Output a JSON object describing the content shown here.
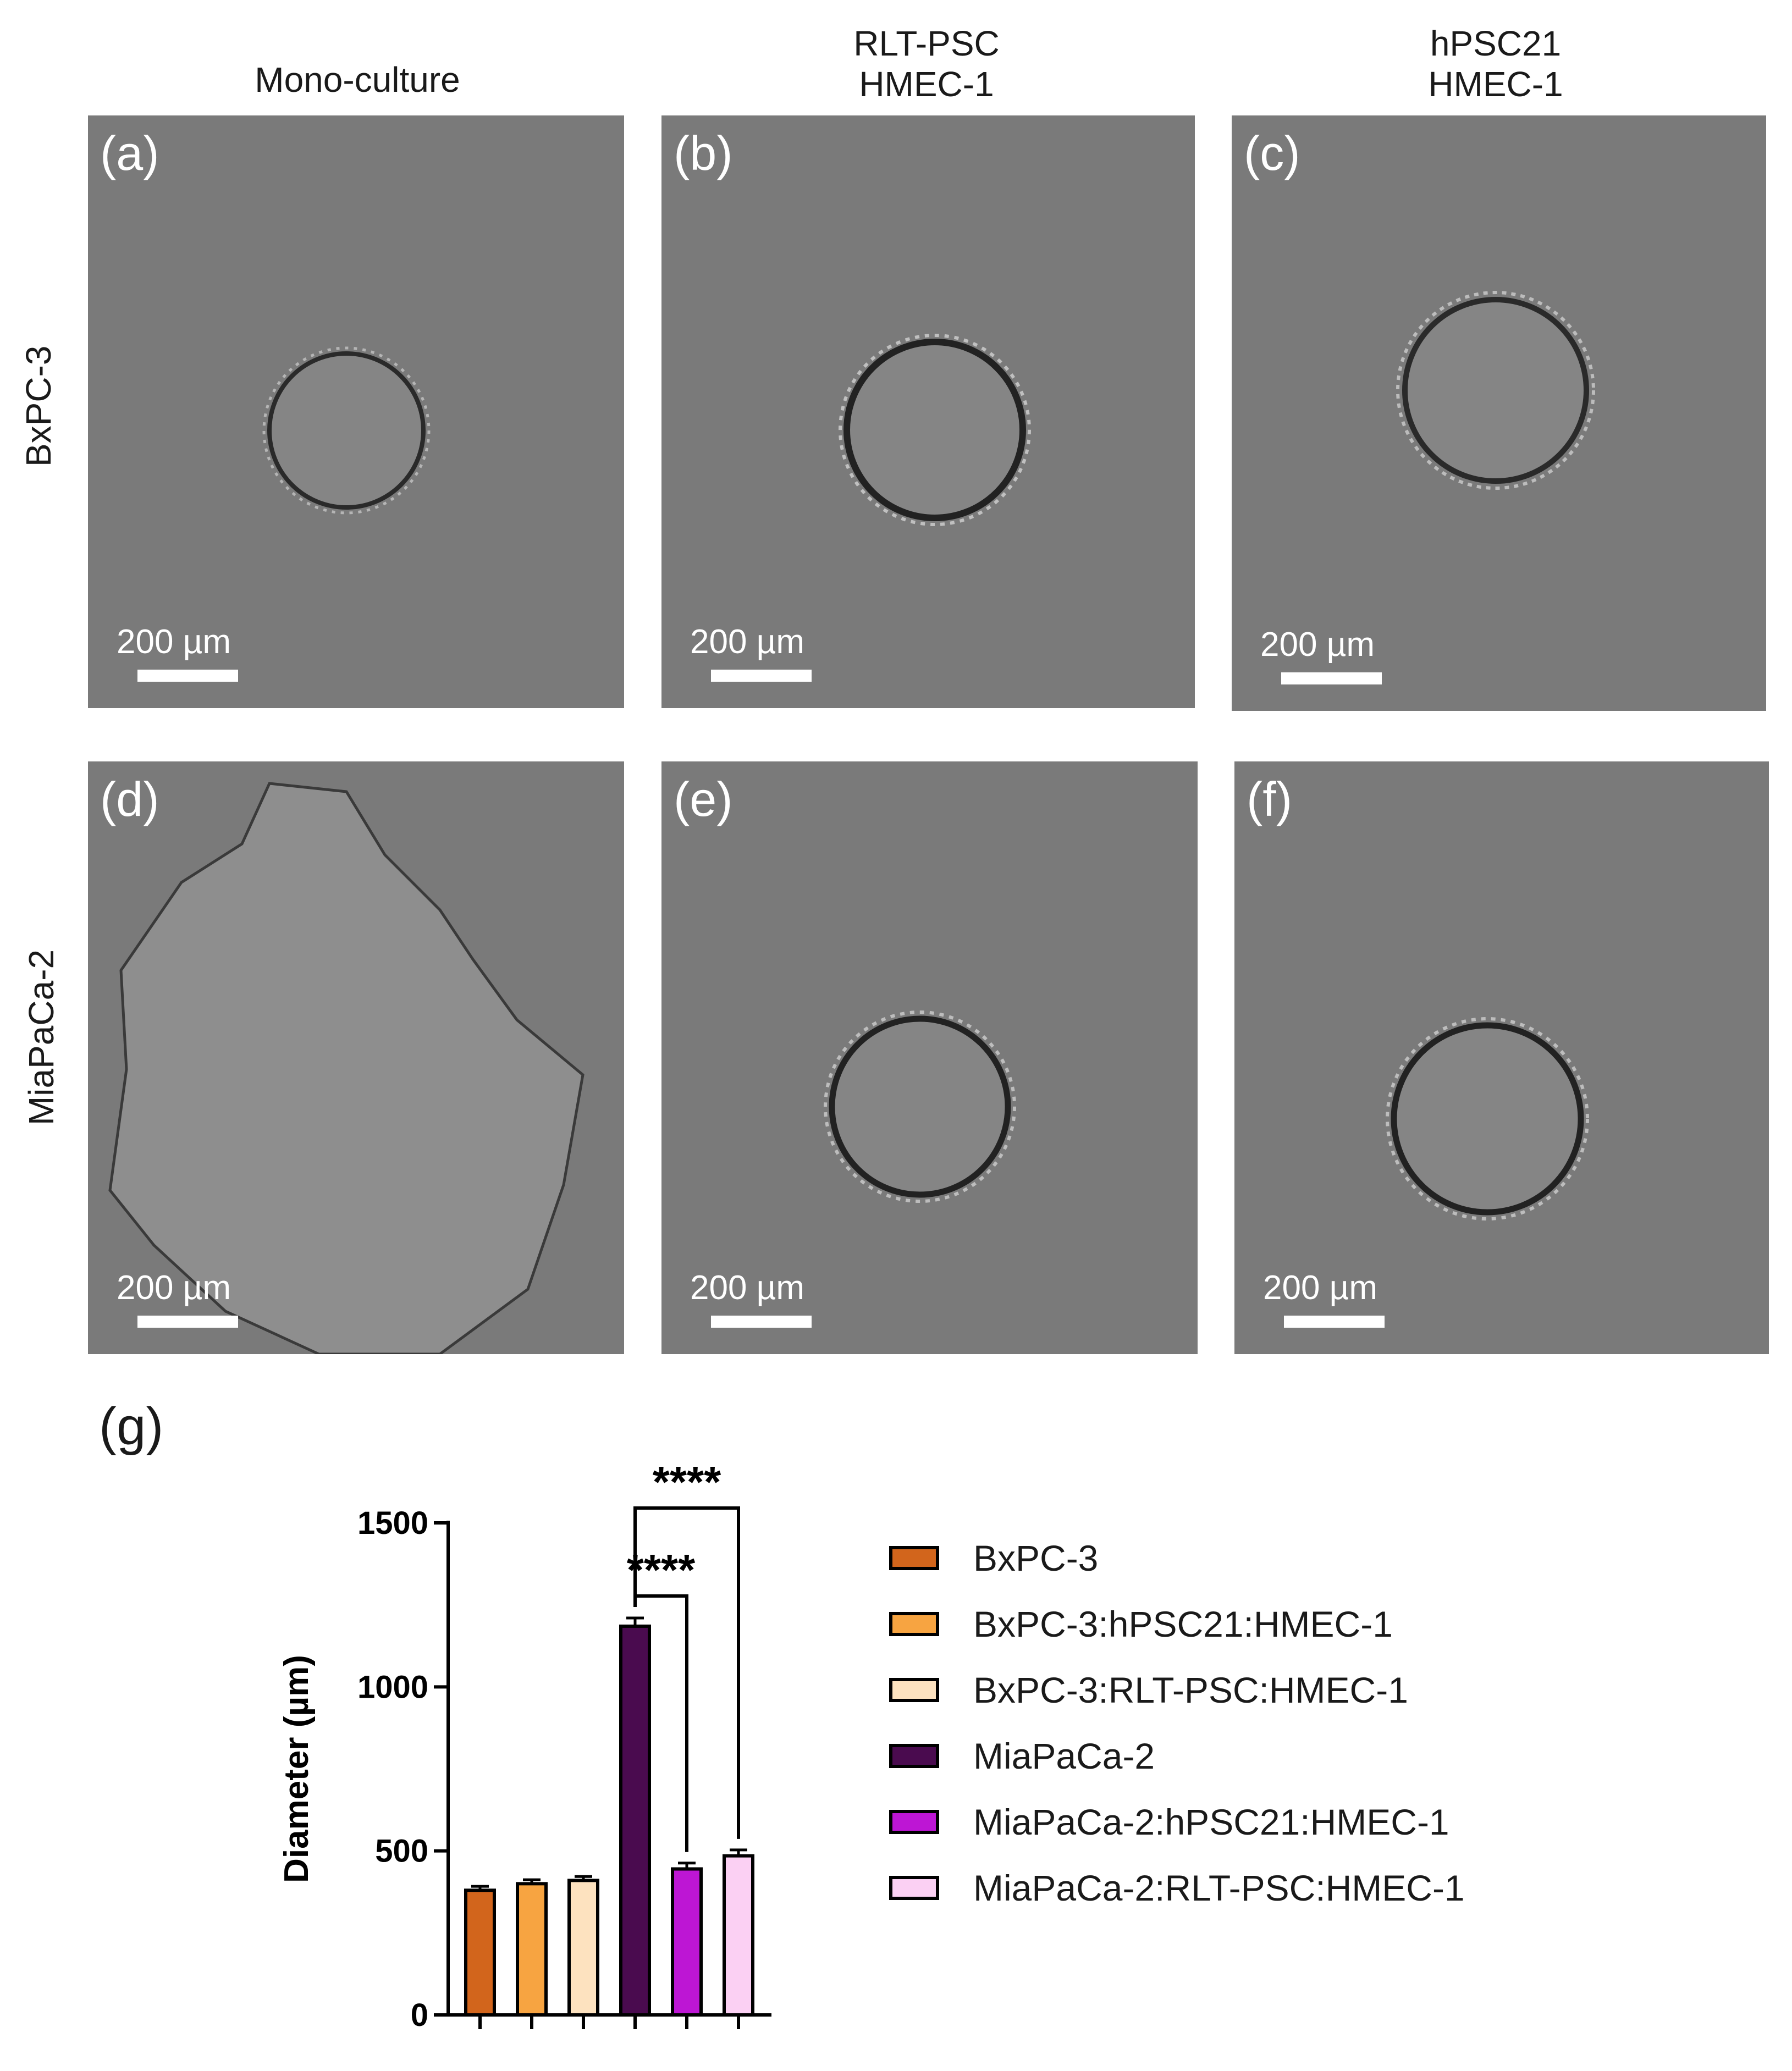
{
  "figure": {
    "column_headers": [
      {
        "lines": [
          "Mono-culture"
        ]
      },
      {
        "lines": [
          "RLT-PSC",
          "HMEC-1"
        ]
      },
      {
        "lines": [
          "hPSC21",
          "HMEC-1"
        ]
      }
    ],
    "row_headers": [
      "BxPC-3",
      "MiaPaCa-2"
    ],
    "panels": [
      {
        "label": "(a)",
        "scale_bar": "200 µm"
      },
      {
        "label": "(b)",
        "scale_bar": "200 µm"
      },
      {
        "label": "(c)",
        "scale_bar": "200 µm"
      },
      {
        "label": "(d)",
        "scale_bar": "200 µm"
      },
      {
        "label": "(e)",
        "scale_bar": "200 µm"
      },
      {
        "label": "(f)",
        "scale_bar": "200 µm"
      }
    ],
    "chart_panel_label": "(g)"
  },
  "colors": {
    "micrograph_background": "#7a7a7a",
    "spheroid_edge": "#2a2a2a"
  },
  "chart_data": {
    "type": "bar",
    "ylabel": "Diameter (µm)",
    "ylim": [
      0,
      1500
    ],
    "yticks": [
      "0",
      "500",
      "1000",
      "1500"
    ],
    "categories": [
      "BxPC-3",
      "BxPC-3:hPSC21:HMEC-1",
      "BxPC-3:RLT-PSC:HMEC-1",
      "MiaPaCa-2",
      "MiaPaCa-2:hPSC21:HMEC-1",
      "MiaPaCa-2:RLT-PSC:HMEC-1"
    ],
    "values": [
      380,
      400,
      410,
      1185,
      445,
      485
    ],
    "errors": [
      12,
      12,
      12,
      25,
      18,
      18
    ],
    "colors": [
      "#d2651c",
      "#f7a441",
      "#fde2bf",
      "#4a0b4f",
      "#bd16d4",
      "#fbd0f3"
    ],
    "legend": {
      "placement": "right",
      "entries": [
        "BxPC-3",
        "BxPC-3:hPSC21:HMEC-1",
        "BxPC-3:RLT-PSC:HMEC-1",
        "MiaPaCa-2",
        "MiaPaCa-2:hPSC21:HMEC-1",
        "MiaPaCa-2:RLT-PSC:HMEC-1"
      ]
    },
    "significance": [
      {
        "from": 3,
        "to": 4,
        "label": "****"
      },
      {
        "from": 3,
        "to": 5,
        "label": "****"
      }
    ]
  }
}
